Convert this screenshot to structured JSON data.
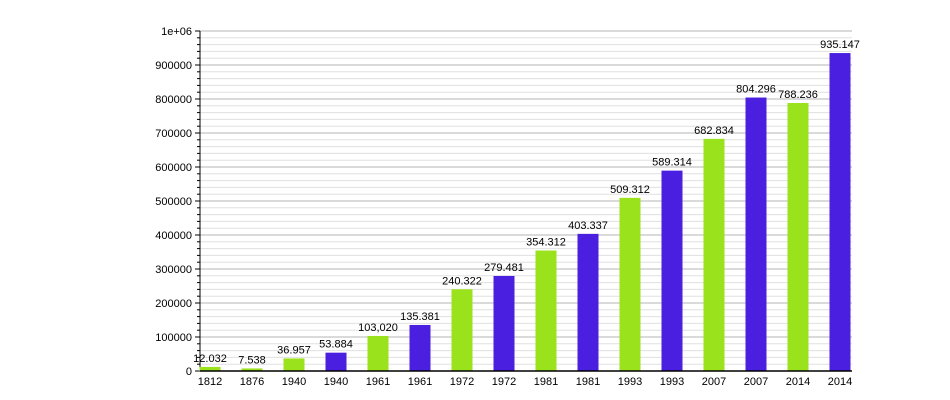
{
  "chart_data": {
    "type": "bar",
    "title": "",
    "xlabel": "",
    "ylabel": "",
    "ylim": [
      0,
      1000000
    ],
    "grid": true,
    "yticks": [
      "0",
      "100000",
      "200000",
      "300000",
      "400000",
      "500000",
      "600000",
      "700000",
      "800000",
      "900000",
      "1e+06"
    ],
    "categories": [
      "1812",
      "1876",
      "1940",
      "1940",
      "1961",
      "1961",
      "1972",
      "1972",
      "1981",
      "1981",
      "1993",
      "1993",
      "2007",
      "2007",
      "2014",
      "2014"
    ],
    "values": [
      12032,
      7538,
      36957,
      53884,
      103020,
      135381,
      240322,
      279481,
      354312,
      403337,
      509312,
      589314,
      682834,
      804296,
      788236,
      935147
    ],
    "data_labels": [
      "12.032",
      "7.538",
      "36.957",
      "53.884",
      "103,020",
      "135.381",
      "240.322",
      "279.481",
      "354.312",
      "403.337",
      "509.312",
      "589.314",
      "682.834",
      "804.296",
      "788.236",
      "935.147"
    ],
    "bar_colors": [
      "#99e21c",
      "#99e21c",
      "#99e21c",
      "#4a1fe0",
      "#99e21c",
      "#4a1fe0",
      "#99e21c",
      "#4a1fe0",
      "#99e21c",
      "#4a1fe0",
      "#99e21c",
      "#4a1fe0",
      "#99e21c",
      "#4a1fe0",
      "#99e21c",
      "#4a1fe0"
    ]
  }
}
